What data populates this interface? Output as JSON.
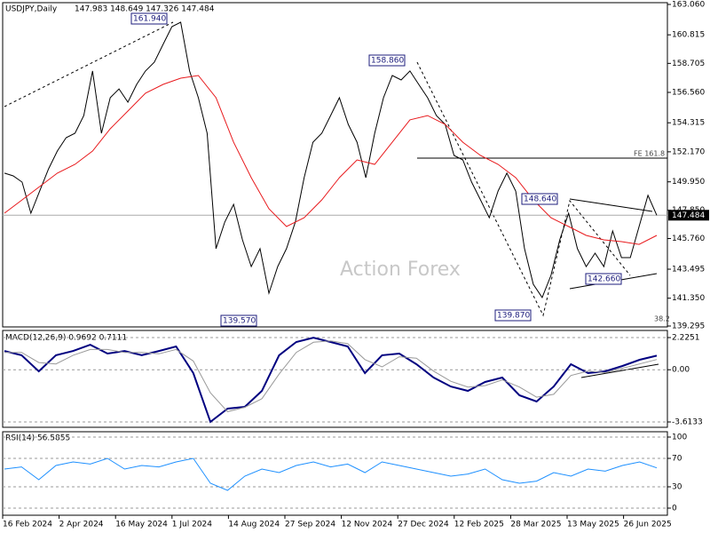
{
  "chart_data": [
    {
      "type": "line",
      "title": "USDJPY,Daily",
      "ohlc_header": "147.983 148.649 147.326 147.484",
      "watermark": "Action Forex",
      "x_labels": [
        "16 Feb 2024",
        "2 Apr 2024",
        "16 May 2024",
        "1 Jul 2024",
        "14 Aug 2024",
        "27 Sep 2024",
        "12 Nov 2024",
        "27 Dec 2024",
        "12 Feb 2025",
        "28 Mar 2025",
        "13 May 2025",
        "26 Jun 2025"
      ],
      "ylim": [
        139.295,
        163.06
      ],
      "yticks": [
        {
          "value": 163.06,
          "label": "163.060"
        },
        {
          "value": 160.815,
          "label": "160.815"
        },
        {
          "value": 158.705,
          "label": "158.705"
        },
        {
          "value": 156.56,
          "label": "156.560"
        },
        {
          "value": 154.315,
          "label": "154.315"
        },
        {
          "value": 152.17,
          "label": "152.170"
        },
        {
          "value": 149.95,
          "label": "149.950"
        },
        {
          "value": 147.85,
          "label": "147.850"
        },
        {
          "value": 145.76,
          "label": "145.760"
        },
        {
          "value": 143.495,
          "label": "143.495"
        },
        {
          "value": 141.35,
          "label": "141.350"
        },
        {
          "value": 139.295,
          "label": "139.295"
        }
      ],
      "current_price": {
        "value": 147.484,
        "label": "147.484"
      },
      "series": [
        {
          "name": "USDJPY",
          "color": "#000000",
          "values": [
            150.59,
            150.39,
            149.93,
            147.63,
            149.27,
            150.91,
            152.23,
            153.21,
            153.54,
            154.85,
            158.14,
            153.54,
            156.17,
            156.82,
            155.84,
            157.15,
            158.14,
            158.79,
            160.11,
            161.42,
            161.75,
            158.14,
            156.17,
            153.54,
            145.01,
            146.98,
            148.29,
            145.66,
            143.69,
            145.01,
            141.72,
            143.69,
            145.01,
            146.98,
            150.26,
            152.88,
            153.54,
            154.85,
            156.17,
            154.2,
            152.88,
            150.26,
            153.54,
            156.17,
            157.81,
            157.48,
            158.14,
            157.15,
            156.17,
            154.85,
            154.2,
            151.9,
            151.57,
            149.93,
            148.62,
            147.3,
            149.27,
            150.59,
            149.27,
            145.01,
            142.38,
            141.4,
            143.04,
            145.66,
            147.63,
            145.01,
            143.69,
            144.68,
            143.69,
            146.32,
            144.35,
            144.35,
            146.65,
            148.95,
            147.484
          ]
        },
        {
          "name": "MA",
          "color": "#e8191c",
          "values": [
            147.63,
            148.62,
            149.6,
            150.59,
            151.24,
            152.23,
            153.87,
            155.18,
            156.5,
            157.15,
            157.61,
            157.81,
            156.17,
            152.88,
            150.26,
            147.96,
            146.65,
            147.3,
            148.62,
            150.26,
            151.57,
            151.24,
            152.88,
            154.53,
            154.85,
            154.2,
            152.88,
            151.9,
            151.24,
            150.26,
            148.62,
            147.3,
            146.65,
            145.99,
            145.66,
            145.53,
            145.33,
            145.99
          ]
        }
      ],
      "annotations": [
        "161.940",
        "158.860",
        "148.640",
        "142.660",
        "139.570",
        "139.870",
        "FE 161.8",
        "38.2"
      ]
    },
    {
      "type": "line",
      "title": "MACD(12,26,9) 0.9692 0.7111",
      "ylim": [
        -3.982,
        2.717
      ],
      "yticks": [
        {
          "value": 2.2251,
          "label": "2.2251"
        },
        {
          "value": 0,
          "label": "0.00"
        },
        {
          "value": -3.6133,
          "label": "-3.6133"
        }
      ],
      "series": [
        {
          "name": "MACD",
          "color": "#000080",
          "values": [
            1.3,
            1.0,
            -0.11,
            1.0,
            1.3,
            1.73,
            1.12,
            1.3,
            1.0,
            1.3,
            1.61,
            -0.23,
            -3.61,
            -2.69,
            -2.57,
            -1.46,
            1.0,
            1.92,
            2.22,
            1.92,
            1.61,
            -0.23,
            1.0,
            1.12,
            0.38,
            -0.54,
            -1.16,
            -1.46,
            -0.85,
            -0.54,
            -1.77,
            -2.2,
            -1.16,
            0.38,
            -0.23,
            -0.11,
            0.26,
            0.69,
            0.97
          ]
        },
        {
          "name": "Signal",
          "color": "#999999",
          "values": [
            1.2,
            1.2,
            0.5,
            0.4,
            1.0,
            1.4,
            1.4,
            1.2,
            1.2,
            1.1,
            1.4,
            0.6,
            -1.6,
            -2.9,
            -2.6,
            -2.0,
            -0.3,
            1.2,
            1.9,
            2.0,
            1.8,
            0.7,
            0.2,
            0.9,
            0.8,
            -0.1,
            -0.8,
            -1.2,
            -1.1,
            -0.7,
            -1.2,
            -1.9,
            -1.7,
            -0.4,
            -0.1,
            -0.2,
            0.1,
            0.4,
            0.71
          ]
        }
      ]
    },
    {
      "type": "line",
      "title": "RSI(14) 56.5855",
      "ylim": [
        -10,
        107.5
      ],
      "yticks": [
        100,
        70,
        30,
        0
      ],
      "series": [
        {
          "name": "RSI",
          "color": "#1e90ff",
          "values": [
            55,
            58,
            40,
            60,
            65,
            62,
            70,
            55,
            60,
            58,
            65,
            70,
            35,
            25,
            45,
            55,
            50,
            60,
            65,
            58,
            62,
            50,
            65,
            60,
            55,
            50,
            45,
            48,
            55,
            40,
            35,
            38,
            50,
            45,
            55,
            52,
            60,
            65,
            56.5855
          ]
        }
      ]
    }
  ]
}
